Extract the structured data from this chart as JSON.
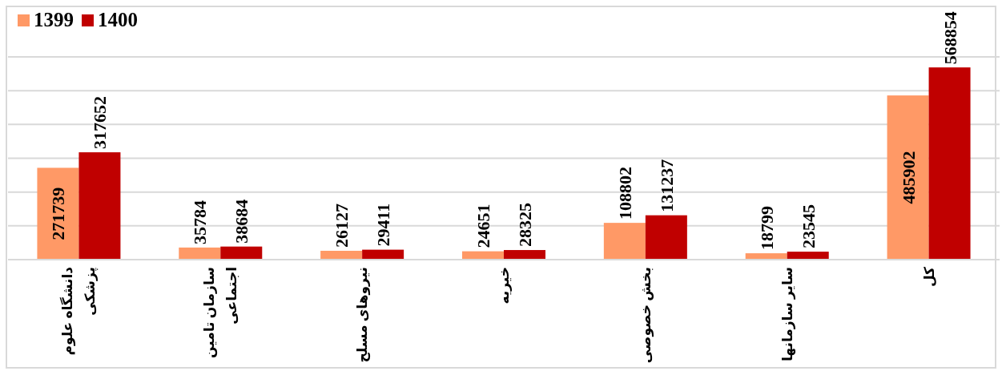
{
  "chart_data": {
    "type": "bar",
    "categories": [
      "دانشگاه علوم\nپزشکی",
      "سازمان تامین\nاجتماعی",
      "نیروهای مسلح",
      "خیریه",
      "بخش خصوصی",
      "سایر سازمانها",
      "کل"
    ],
    "series": [
      {
        "name": "1399",
        "color": "#ff9966",
        "values": [
          271739,
          35784,
          26127,
          24651,
          108802,
          18799,
          485902
        ]
      },
      {
        "name": "1400",
        "color": "#c00000",
        "values": [
          317652,
          38684,
          29411,
          28325,
          131237,
          23545,
          568854
        ]
      }
    ],
    "ylim": [
      0,
      600000
    ],
    "yticks": [
      {
        "value": 0,
        "label": null
      },
      {
        "value": 100000,
        "label": null
      },
      {
        "value": 200000,
        "label": null
      },
      {
        "value": 300000,
        "label": null
      },
      {
        "value": 400000,
        "label": null
      },
      {
        "value": 500000,
        "label": null
      },
      {
        "value": 600000,
        "label": null
      }
    ],
    "grid": "y",
    "legend": "top left",
    "data_labels": true
  }
}
